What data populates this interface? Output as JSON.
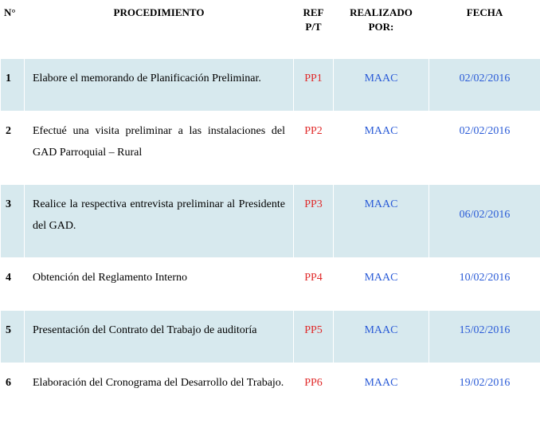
{
  "colors": {
    "odd_row_bg": "#d7e9ee",
    "even_row_bg": "#ffffff",
    "text_black": "#000000",
    "text_red": "#e02a2a",
    "text_blue": "#2a5bd7",
    "border": "#ffffff"
  },
  "typography": {
    "font_family": "Times New Roman",
    "header_fontsize_pt": 10,
    "body_fontsize_pt": 11
  },
  "table": {
    "columns": {
      "num": "N°",
      "procedimiento": "PROCEDIMIENTO",
      "ref": [
        "REF",
        "P/T"
      ],
      "realizado": [
        "REALIZADO",
        "POR:"
      ],
      "fecha": "FECHA"
    },
    "rows": [
      {
        "num": "1",
        "procedimiento": "Elabore el memorando de Planificación Preliminar.",
        "ref": "PP1",
        "realizado": "MAAC",
        "fecha": "02/02/2016"
      },
      {
        "num": "2",
        "procedimiento": "Efectué una visita preliminar a las instalaciones del GAD Parroquial – Rural",
        "ref": "PP2",
        "realizado": "MAAC",
        "fecha": "02/02/2016"
      },
      {
        "num": "3",
        "procedimiento": "Realice la respectiva entrevista preliminar al Presidente del GAD.",
        "ref": "PP3",
        "realizado": "MAAC",
        "fecha": "06/02/2016"
      },
      {
        "num": "4",
        "procedimiento": "Obtención del Reglamento Interno",
        "ref": "PP4",
        "realizado": "MAAC",
        "fecha": "10/02/2016"
      },
      {
        "num": "5",
        "procedimiento": "Presentación del Contrato del Trabajo de auditoría",
        "ref": "PP5",
        "realizado": "MAAC",
        "fecha": "15/02/2016"
      },
      {
        "num": "6",
        "procedimiento": "Elaboración del Cronograma del Desarrollo del Trabajo.",
        "ref": "PP6",
        "realizado": "MAAC",
        "fecha": "19/02/2016"
      }
    ]
  }
}
